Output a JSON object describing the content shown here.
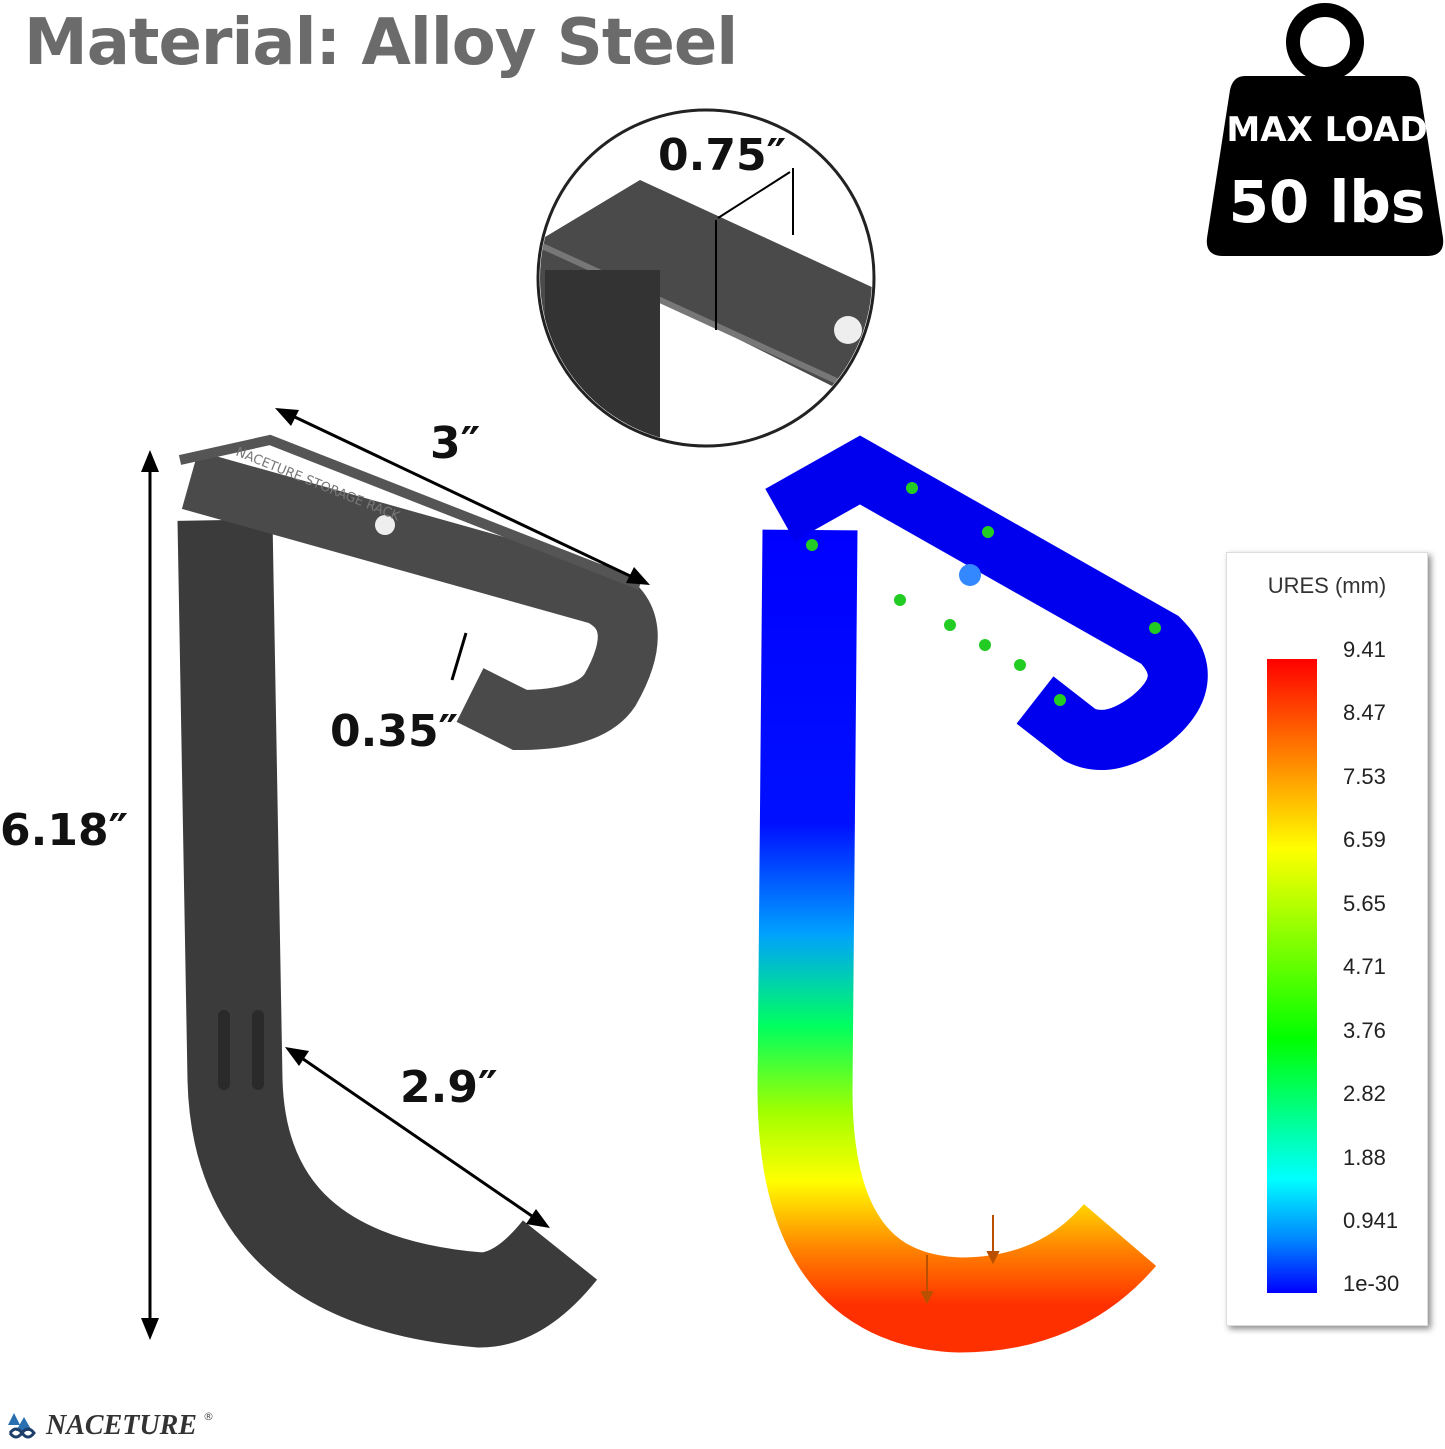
{
  "title": "Material: Alloy Steel",
  "badge": {
    "line1": "MAX LOAD",
    "line2": "50 lbs",
    "icon": "weight-icon"
  },
  "dimensions": {
    "width_top": "3″",
    "thickness": "0.35″",
    "height": "6.18″",
    "hook_depth": "2.9″",
    "strap_width": "0.75″"
  },
  "engraving": "NACETURE STORAGE RACK",
  "legend": {
    "title": "URES (mm)",
    "ticks": [
      "9.41",
      "8.47",
      "7.53",
      "6.59",
      "5.65",
      "4.71",
      "3.76",
      "2.82",
      "1.88",
      "0.941",
      "1e-30"
    ],
    "colors": [
      "#ff0000",
      "#ff7f00",
      "#ffff00",
      "#00ff00",
      "#00ffff",
      "#0000ff"
    ]
  },
  "brand": {
    "name": "NACETURE",
    "mark": "®"
  }
}
